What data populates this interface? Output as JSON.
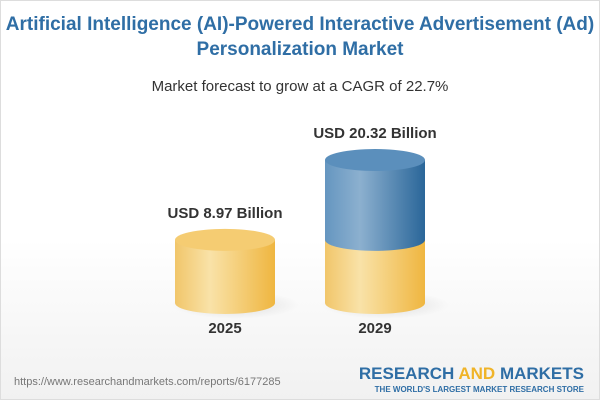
{
  "title_line1": "Artificial Intelligence (AI)-Powered Interactive Advertisement (Ad)",
  "title_line2": "Personalization Market",
  "subtitle": "Market forecast to grow at a CAGR of 22.7%",
  "chart_data": {
    "type": "bar",
    "style": "3d-cylinder",
    "categories": [
      "2025",
      "2029"
    ],
    "values": [
      8.97,
      20.32
    ],
    "value_labels": [
      "USD 8.97 Billion",
      "USD 20.32 Billion"
    ],
    "unit": "USD Billion",
    "cagr": "22.7%",
    "colors": {
      "base": "#f4c862",
      "growth": "#4a80b0"
    },
    "grid": false
  },
  "footer": {
    "url": "https://www.researchandmarkets.com/reports/6177285",
    "logo_a": "RESEARCH ",
    "logo_and": "AND",
    "logo_b": " MARKETS",
    "tagline": "THE WORLD'S LARGEST MARKET RESEARCH STORE"
  }
}
